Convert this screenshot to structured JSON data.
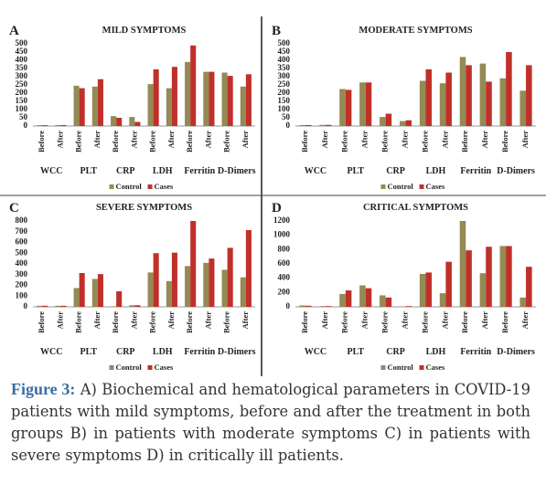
{
  "chart_data": [
    {
      "type": "bar",
      "panel": "A",
      "title": "MILD SYMPTOMS",
      "categories": [
        "Before",
        "After",
        "Before",
        "After",
        "Before",
        "After",
        "Before",
        "After",
        "Before",
        "After",
        "Before",
        "After"
      ],
      "groups": [
        "WCC",
        "PLT",
        "CRP",
        "LDH",
        "Ferritin",
        "D-Dimers"
      ],
      "series": [
        {
          "name": "Control",
          "color": "#948a54",
          "values": [
            5,
            6,
            245,
            240,
            60,
            55,
            255,
            230,
            390,
            330,
            325,
            240
          ]
        },
        {
          "name": "Cases",
          "color": "#c0302a",
          "values": [
            5,
            6,
            230,
            285,
            50,
            25,
            345,
            360,
            490,
            330,
            305,
            315
          ]
        }
      ],
      "ylim": [
        0,
        500
      ],
      "yticks": [
        0,
        50,
        100,
        150,
        200,
        250,
        300,
        350,
        400,
        450,
        500
      ],
      "grid": false
    },
    {
      "type": "bar",
      "panel": "B",
      "title": "MODERATE SYMPTOMS",
      "categories": [
        "Before",
        "After",
        "Before",
        "After",
        "Before",
        "After",
        "Before",
        "After",
        "Before",
        "After",
        "Before",
        "After"
      ],
      "groups": [
        "WCC",
        "PLT",
        "CRP",
        "LDH",
        "Ferritin",
        "D-Dimers"
      ],
      "series": [
        {
          "name": "Control",
          "color": "#948a54",
          "values": [
            6,
            7,
            225,
            265,
            55,
            30,
            275,
            260,
            420,
            380,
            290,
            215
          ]
        },
        {
          "name": "Cases",
          "color": "#c0302a",
          "values": [
            6,
            7,
            220,
            265,
            75,
            35,
            345,
            325,
            370,
            270,
            450,
            370
          ]
        }
      ],
      "ylim": [
        0,
        500
      ],
      "yticks": [
        0,
        50,
        100,
        150,
        200,
        250,
        300,
        350,
        400,
        450,
        500
      ],
      "grid": false
    },
    {
      "type": "bar",
      "panel": "C",
      "title": "SEVERE SYMPTOMS",
      "categories": [
        "Before",
        "After",
        "Before",
        "After",
        "Before",
        "After",
        "Before",
        "After",
        "Before",
        "After",
        "Before",
        "After"
      ],
      "groups": [
        "WCC",
        "PLT",
        "CRP",
        "LDH",
        "Ferritin",
        "D-Dimers"
      ],
      "series": [
        {
          "name": "Control",
          "color": "#948a54",
          "values": [
            10,
            10,
            175,
            260,
            5,
            15,
            320,
            240,
            380,
            410,
            345,
            275
          ]
        },
        {
          "name": "Cases",
          "color": "#c0302a",
          "values": [
            10,
            10,
            315,
            305,
            145,
            15,
            500,
            505,
            800,
            450,
            550,
            715
          ]
        }
      ],
      "ylim": [
        0,
        800
      ],
      "yticks": [
        0,
        100,
        200,
        300,
        400,
        500,
        600,
        700,
        800
      ],
      "grid": false
    },
    {
      "type": "bar",
      "panel": "D",
      "title": "CRITICAL SYMPTOMS",
      "categories": [
        "Before",
        "After",
        "Before",
        "After",
        "Before",
        "After",
        "Before",
        "After",
        "Before",
        "After",
        "Before",
        "After"
      ],
      "groups": [
        "WCC",
        "PLT",
        "CRP",
        "LDH",
        "Ferritin",
        "D-Dimers"
      ],
      "series": [
        {
          "name": "Control",
          "color": "#948a54",
          "values": [
            20,
            10,
            180,
            300,
            160,
            5,
            460,
            190,
            1200,
            470,
            850,
            130
          ]
        },
        {
          "name": "Cases",
          "color": "#c0302a",
          "values": [
            15,
            10,
            230,
            260,
            130,
            10,
            480,
            630,
            790,
            840,
            850,
            560
          ]
        }
      ],
      "ylim": [
        0,
        1200
      ],
      "yticks": [
        0,
        200,
        400,
        600,
        800,
        1000,
        1200
      ],
      "grid": false
    }
  ],
  "caption": {
    "label": "Figure 3:",
    "text": "A) Biochemical and hematological parameters in COVID-19 patients with mild symptoms, before and after the treatment in both groups B) in patients with moderate symptoms C) in patients with severe symptoms D) in critically ill patients."
  }
}
